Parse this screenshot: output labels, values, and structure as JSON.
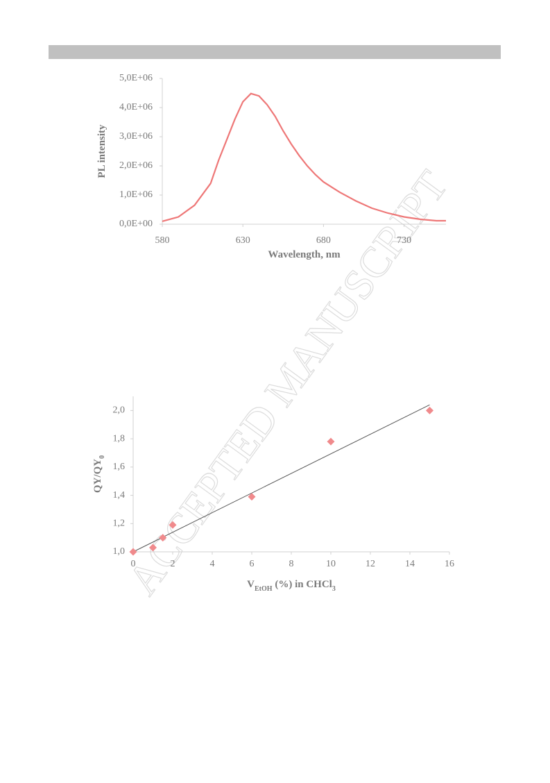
{
  "watermark": "ACCEPTED MANUSCRIPT",
  "chart_data": [
    {
      "type": "line",
      "xlabel": [
        {
          "text": "Wavelength, nm"
        }
      ],
      "ylabel": [
        {
          "text": "PL intensity"
        }
      ],
      "xlim": [
        580,
        756
      ],
      "xticks": [
        580,
        630,
        680,
        730
      ],
      "ylim": [
        0,
        5000000
      ],
      "yticks": [
        {
          "value": 0,
          "label": "0,0E+00"
        },
        {
          "value": 1000000,
          "label": "1,0E+06"
        },
        {
          "value": 2000000,
          "label": "2,0E+06"
        },
        {
          "value": 3000000,
          "label": "3,0E+06"
        },
        {
          "value": 4000000,
          "label": "4,0E+06"
        },
        {
          "value": 5000000,
          "label": "5,0E+06"
        }
      ],
      "x": [
        580,
        590,
        600,
        610,
        615,
        620,
        625,
        630,
        635,
        640,
        645,
        650,
        655,
        660,
        665,
        670,
        675,
        680,
        690,
        700,
        710,
        720,
        730,
        740,
        750,
        756
      ],
      "series": [
        {
          "color": "#ee7777",
          "values": [
            100000,
            250000,
            650000,
            1400000,
            2200000,
            2900000,
            3600000,
            4200000,
            4480000,
            4400000,
            4100000,
            3700000,
            3200000,
            2750000,
            2350000,
            2000000,
            1700000,
            1450000,
            1100000,
            800000,
            550000,
            380000,
            250000,
            170000,
            120000,
            120000
          ]
        }
      ]
    },
    {
      "type": "scatter",
      "xlabel": [
        {
          "text": "V"
        },
        {
          "sub": "EtOH"
        },
        {
          "text": " (%) in CHCl"
        },
        {
          "sub": "3"
        }
      ],
      "ylabel": [
        {
          "text": "QY/QY"
        },
        {
          "sub": "0"
        }
      ],
      "xlim": [
        0,
        16
      ],
      "xticks": [
        0,
        2,
        4,
        6,
        8,
        10,
        12,
        14,
        16
      ],
      "ylim": [
        1.0,
        2.1
      ],
      "yticks": [
        {
          "value": 1.0,
          "label": "1,0"
        },
        {
          "value": 1.2,
          "label": "1,2"
        },
        {
          "value": 1.4,
          "label": "1,4"
        },
        {
          "value": 1.6,
          "label": "1,6"
        },
        {
          "value": 1.8,
          "label": "1,8"
        },
        {
          "value": 2.0,
          "label": "2,0"
        }
      ],
      "x": [
        0,
        1,
        1.5,
        2,
        6,
        10,
        15
      ],
      "series": [
        {
          "color": "#f08a8c",
          "values": [
            1.0,
            1.03,
            1.1,
            1.19,
            1.39,
            1.78,
            2.0
          ]
        }
      ],
      "trendline": {
        "color": "#555555",
        "x": [
          0,
          15
        ],
        "values": [
          1.0,
          2.04
        ]
      }
    }
  ]
}
